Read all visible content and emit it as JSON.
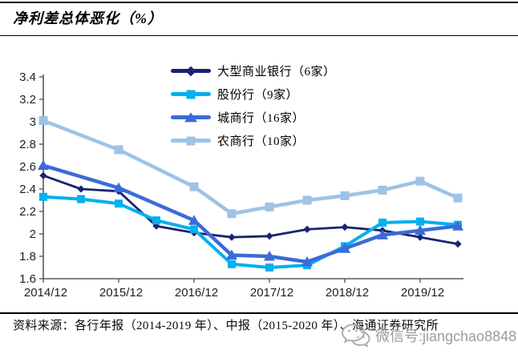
{
  "header": {
    "title": "净利差总体恶化（%）"
  },
  "chart_data": {
    "type": "line",
    "title": "净利差总体恶化（%）",
    "xlabel": "",
    "ylabel": "",
    "categories": [
      "2014/12",
      "2015/06",
      "2015/12",
      "2016/06",
      "2016/12",
      "2017/06",
      "2017/12",
      "2018/06",
      "2018/12",
      "2019/06",
      "2019/12",
      "2020/06"
    ],
    "x_tick_labels": [
      "2014/12",
      "2015/12",
      "2016/12",
      "2017/12",
      "2018/12",
      "2019/12"
    ],
    "y_tick_labels": [
      "1.6",
      "1.8",
      "2",
      "2.2",
      "2.4",
      "2.6",
      "2.8",
      "3",
      "3.2",
      "3.4"
    ],
    "ylim": [
      1.6,
      3.4
    ],
    "grid": false,
    "legend_position": "inside-top-center",
    "series": [
      {
        "name": "大型商业银行（6家）",
        "color": "#1A2370",
        "marker": "diamond",
        "values": [
          2.52,
          2.4,
          2.38,
          2.07,
          2.01,
          1.97,
          1.98,
          2.04,
          2.06,
          2.03,
          1.97,
          1.91
        ]
      },
      {
        "name": "股份行（9家）",
        "color": "#00B0F0",
        "marker": "square",
        "values": [
          2.33,
          2.31,
          2.27,
          2.12,
          2.04,
          1.73,
          1.7,
          1.72,
          1.89,
          2.1,
          2.11,
          2.08
        ]
      },
      {
        "name": "城商行（16家）",
        "color": "#3C6AD8",
        "marker": "triangle",
        "values": [
          2.61,
          null,
          2.41,
          null,
          2.12,
          1.81,
          1.8,
          1.75,
          1.87,
          1.99,
          2.03,
          2.07
        ]
      },
      {
        "name": "农商行（10家）",
        "color": "#9DC3E6",
        "marker": "square",
        "values": [
          3.01,
          null,
          2.75,
          null,
          2.42,
          2.18,
          2.24,
          2.3,
          2.34,
          2.39,
          2.47,
          2.32
        ]
      }
    ],
    "axis_color": "#595959",
    "tick_label_color": "#1f1f1f"
  },
  "footer": {
    "source": "资料来源：各行年报（2014-2019 年）、中报（2015-2020 年）、海通证券研究所"
  },
  "watermark": {
    "label": "微信号:jiangchao8848",
    "icon": "wechat-icon"
  }
}
